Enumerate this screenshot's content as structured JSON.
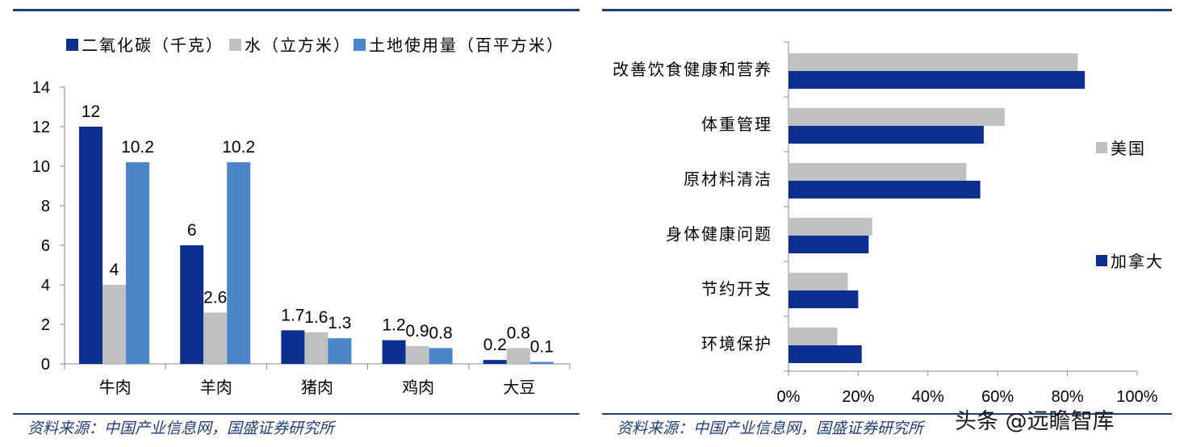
{
  "left_source": "资料来源：中国产业信息网，国盛证券研究所",
  "right_source": "资料来源：中国产业信息网，国盛证券研究所",
  "watermark": "头条 @远瞻智库",
  "colors": {
    "rule": "#1f3d7a",
    "dark_blue": "#0d2f8f",
    "gray": "#c0c0c0",
    "light_blue": "#4d86c8",
    "source_text": "#1f3d7a"
  },
  "chart_data": [
    {
      "type": "bar",
      "categories": [
        "牛肉",
        "羊肉",
        "猪肉",
        "鸡肉",
        "大豆"
      ],
      "series": [
        {
          "name": "二氧化碳（千克）",
          "values": [
            12,
            6,
            1.7,
            1.2,
            0.2
          ],
          "labels": [
            "12",
            "6",
            "1.7",
            "1.2",
            "0.2"
          ],
          "color": "#0d2f8f"
        },
        {
          "name": "水（立方米）",
          "values": [
            4,
            2.6,
            1.6,
            0.9,
            0.8
          ],
          "labels": [
            "4",
            "2.6",
            "1.6",
            "0.9",
            "0.8"
          ],
          "color": "#c0c0c0"
        },
        {
          "name": "土地使用量（百平方米）",
          "values": [
            10.2,
            10.2,
            1.3,
            0.8,
            0.1
          ],
          "labels": [
            "10.2",
            "10.2",
            "1.3",
            "0.8",
            "0.1"
          ],
          "color": "#4d86c8"
        }
      ],
      "ylim": [
        0,
        14
      ],
      "yticks": [
        0,
        2,
        4,
        6,
        8,
        10,
        12,
        14
      ],
      "legend": "top",
      "grid": false
    },
    {
      "type": "bar",
      "orientation": "horizontal",
      "categories": [
        "改善饮食健康和营养",
        "体重管理",
        "原材料清洁",
        "身体健康问题",
        "节约开支",
        "环境保护"
      ],
      "series": [
        {
          "name": "美国",
          "values": [
            83,
            62,
            51,
            24,
            17,
            14
          ],
          "color": "#c0c0c0"
        },
        {
          "name": "加拿大",
          "values": [
            85,
            56,
            55,
            23,
            20,
            21
          ],
          "color": "#0d2f8f"
        }
      ],
      "xlim": [
        0,
        100
      ],
      "xticks": [
        0,
        20,
        40,
        60,
        80,
        100
      ],
      "xtick_labels": [
        "0%",
        "20%",
        "40%",
        "60%",
        "80%",
        "100%"
      ],
      "legend": "right",
      "grid": false
    }
  ]
}
